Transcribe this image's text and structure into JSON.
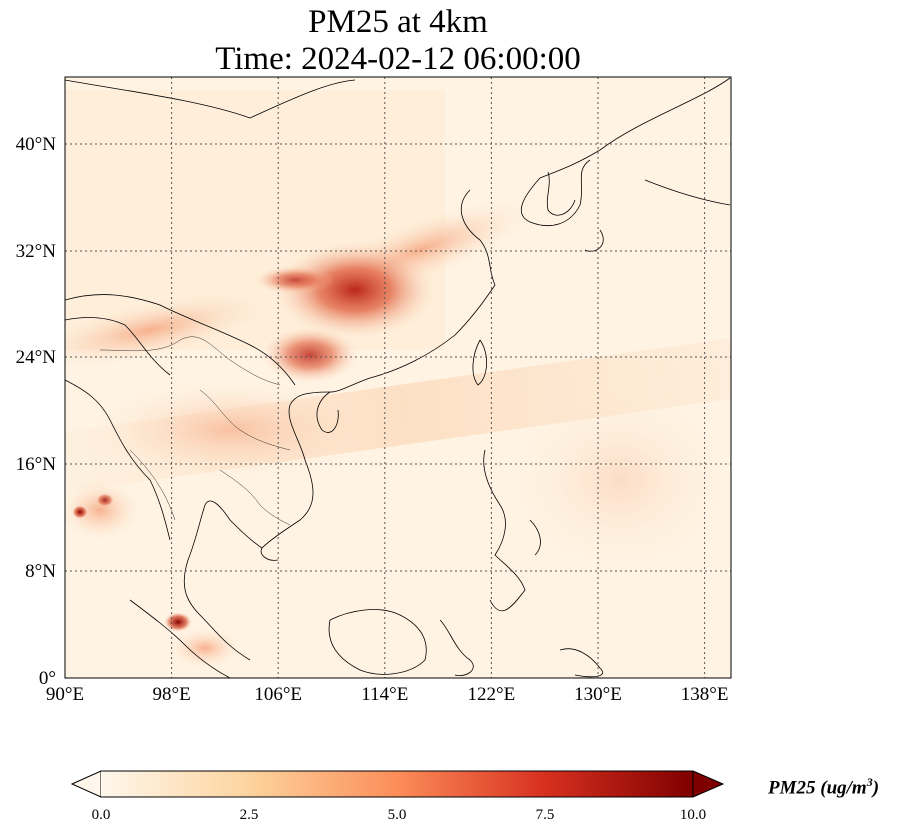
{
  "title_line1": "PM25 at 4km",
  "title_line2": "Time: 2024-02-12 06:00:00",
  "x_ticks": [
    "90°E",
    "98°E",
    "106°E",
    "114°E",
    "122°E",
    "130°E",
    "138°E"
  ],
  "y_ticks": [
    "0°",
    "8°N",
    "16°N",
    "24°N",
    "32°N",
    "40°N"
  ],
  "map_extent": {
    "lon": [
      90,
      140
    ],
    "lat": [
      0,
      45
    ]
  },
  "gridlines": true,
  "colormap": {
    "name": "OrRd",
    "colors": [
      "#fff7ec",
      "#fdd49e",
      "#fc8d59",
      "#d7301f",
      "#7f0000"
    ]
  },
  "colorbar": {
    "ticks": [
      "0.0",
      "2.5",
      "5.0",
      "7.5",
      "10.0"
    ],
    "range": [
      0,
      10
    ],
    "extend": "both",
    "label_prefix": "PM25 (ug/m",
    "label_sup": "3",
    "label_suffix": ")"
  }
}
